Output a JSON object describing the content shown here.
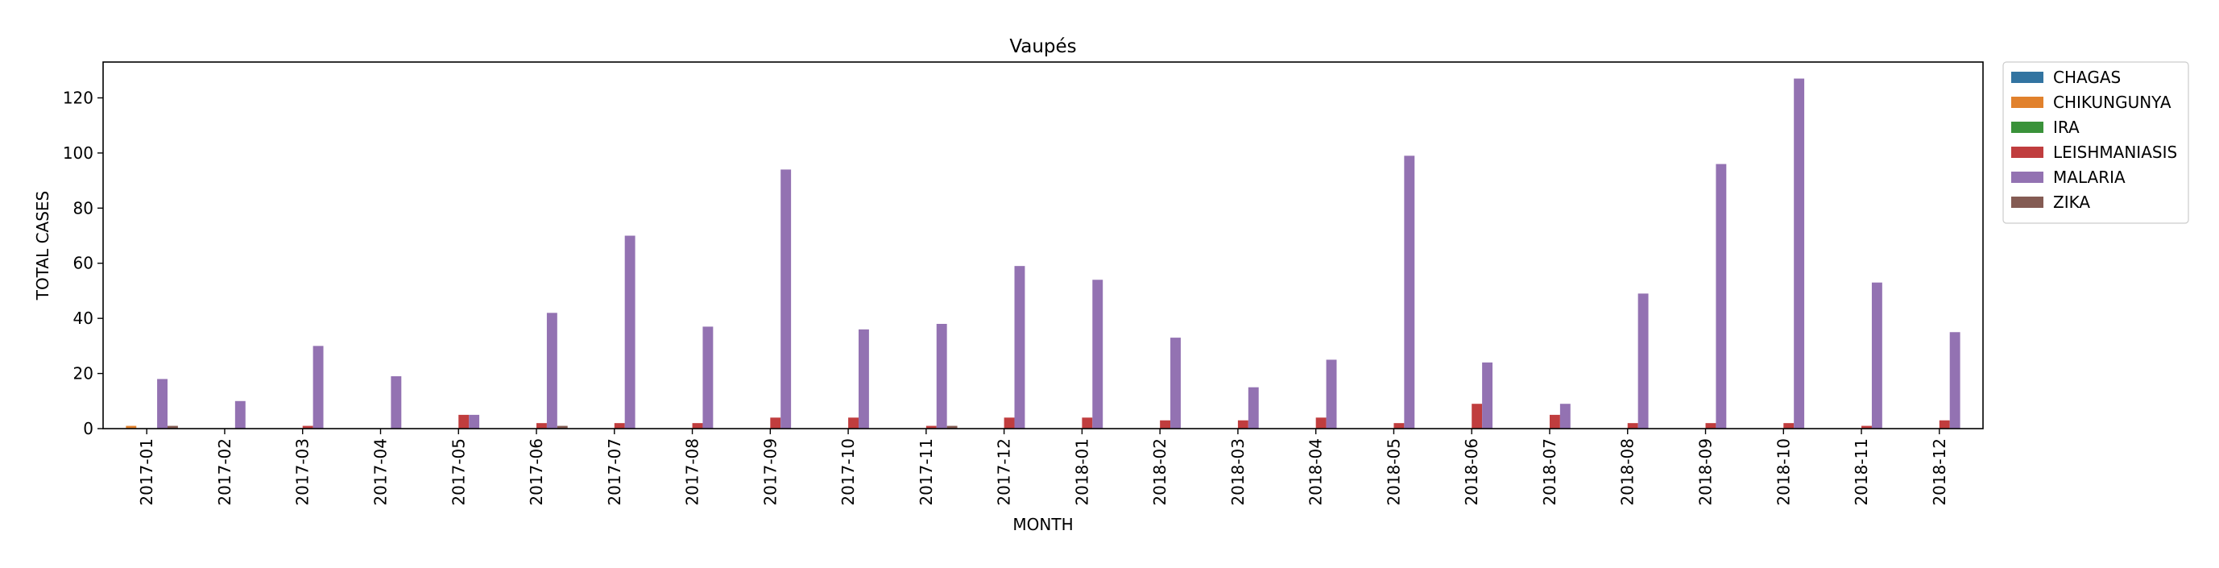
{
  "chart_data": {
    "type": "bar",
    "title": "Vaupés",
    "xlabel": "MONTH",
    "ylabel": "TOTAL CASES",
    "ylim": [
      0,
      133
    ],
    "yticks": [
      0,
      20,
      40,
      60,
      80,
      100,
      120
    ],
    "grid": false,
    "legend_position": "outside-top-right",
    "categories": [
      "2017-01",
      "2017-02",
      "2017-03",
      "2017-04",
      "2017-05",
      "2017-06",
      "2017-07",
      "2017-08",
      "2017-09",
      "2017-10",
      "2017-11",
      "2017-12",
      "2018-01",
      "2018-02",
      "2018-03",
      "2018-04",
      "2018-05",
      "2018-06",
      "2018-07",
      "2018-08",
      "2018-09",
      "2018-10",
      "2018-11",
      "2018-12"
    ],
    "series": [
      {
        "name": "CHAGAS",
        "color": "#3274a1",
        "values": [
          0,
          0,
          0,
          0,
          0,
          0,
          0,
          0,
          0,
          0,
          0,
          0,
          0,
          0,
          0,
          0,
          0,
          0,
          0,
          0,
          0,
          0,
          0,
          0
        ]
      },
      {
        "name": "CHIKUNGUNYA",
        "color": "#e1812c",
        "values": [
          1,
          0,
          0,
          0,
          0,
          0,
          0,
          0,
          0,
          0,
          0,
          0,
          0,
          0,
          0,
          0,
          0,
          0,
          0,
          0,
          0,
          0,
          0,
          0
        ]
      },
      {
        "name": "IRA",
        "color": "#3a923a",
        "values": [
          0,
          0,
          0,
          0,
          0,
          0,
          0,
          0,
          0,
          0,
          0,
          0,
          0,
          0,
          0,
          0,
          0,
          0,
          0,
          0,
          0,
          0,
          0,
          0
        ]
      },
      {
        "name": "LEISHMANIASIS",
        "color": "#c03d3e",
        "values": [
          0,
          0,
          1,
          0,
          5,
          2,
          2,
          2,
          4,
          4,
          1,
          4,
          4,
          3,
          3,
          4,
          2,
          9,
          5,
          2,
          2,
          2,
          1,
          3
        ]
      },
      {
        "name": "MALARIA",
        "color": "#9372b2",
        "values": [
          18,
          10,
          30,
          19,
          5,
          42,
          70,
          37,
          94,
          36,
          38,
          59,
          54,
          33,
          15,
          25,
          99,
          24,
          9,
          49,
          96,
          127,
          53,
          35
        ]
      },
      {
        "name": "ZIKA",
        "color": "#845b53",
        "values": [
          1,
          0,
          0,
          0,
          0,
          1,
          0,
          0,
          0,
          0,
          1,
          0,
          0,
          0,
          0,
          0,
          0,
          0,
          0,
          0,
          0,
          0,
          0,
          0
        ]
      }
    ]
  }
}
